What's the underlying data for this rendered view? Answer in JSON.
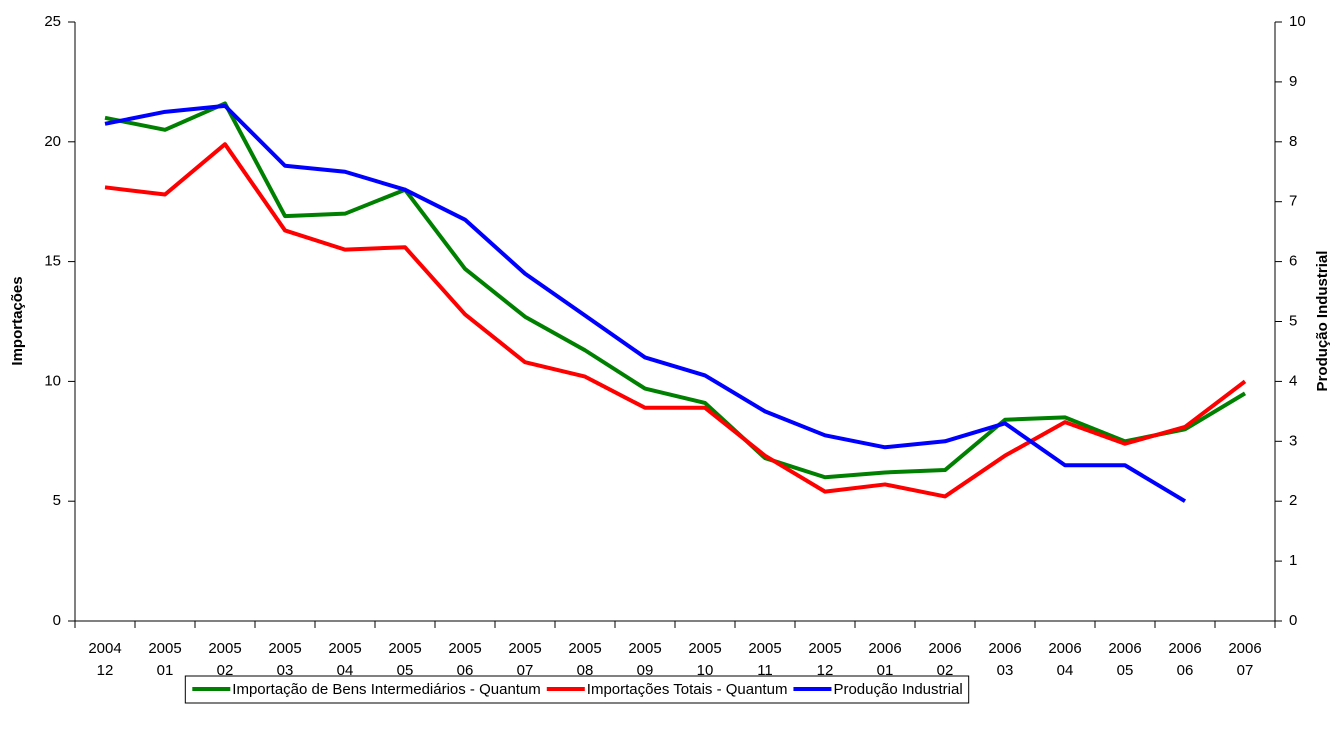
{
  "chart_data": {
    "type": "line",
    "categories": [
      "2004 12",
      "2005 01",
      "2005 02",
      "2005 03",
      "2005 04",
      "2005 05",
      "2005 06",
      "2005 07",
      "2005 08",
      "2005 09",
      "2005 10",
      "2005 11",
      "2005 12",
      "2006 01",
      "2006 02",
      "2006 03",
      "2006 04",
      "2006 05",
      "2006 06",
      "2006 07"
    ],
    "ylabel": "Importações",
    "y2label": "Produção Industrial",
    "ylim": [
      0,
      25
    ],
    "yticks": [
      0,
      5,
      10,
      15,
      20,
      25
    ],
    "y2lim": [
      0,
      10
    ],
    "y2ticks": [
      0,
      1,
      2,
      3,
      4,
      5,
      6,
      7,
      8,
      9,
      10
    ],
    "grid": false,
    "series": [
      {
        "name": "Importação de Bens Intermediários - Quantum",
        "color": "#008000",
        "values": [
          21.0,
          20.5,
          21.6,
          16.9,
          17.0,
          18.0,
          14.7,
          12.7,
          11.3,
          9.7,
          9.1,
          6.8,
          6.0,
          6.2,
          6.3,
          8.4,
          8.5,
          7.5,
          8.0,
          9.5
        ]
      },
      {
        "name": "Importações Totais - Quantum",
        "color": "#ff0000",
        "values": [
          18.1,
          17.8,
          19.9,
          16.3,
          15.5,
          15.6,
          12.8,
          10.8,
          10.2,
          8.9,
          8.9,
          6.9,
          5.4,
          5.7,
          5.2,
          6.9,
          8.3,
          7.4,
          8.1,
          10.0
        ]
      },
      {
        "name": "Produção Industrial",
        "color": "#0000ff",
        "axis": "y2",
        "values": [
          8.3,
          8.5,
          8.6,
          7.6,
          7.5,
          7.2,
          6.7,
          5.8,
          5.1,
          4.4,
          4.1,
          3.5,
          3.1,
          2.9,
          3.0,
          3.3,
          2.6,
          2.6,
          2.0,
          null
        ]
      }
    ]
  }
}
